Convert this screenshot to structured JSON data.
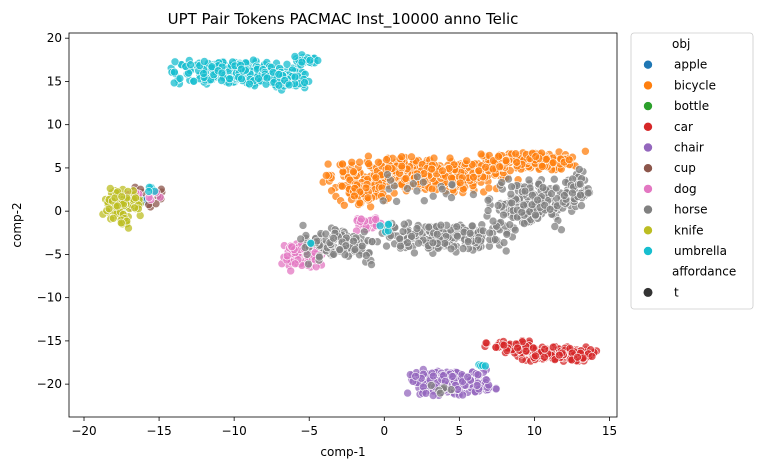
{
  "chart_data": {
    "type": "scatter",
    "title": "UPT Pair Tokens PACMAC Inst_10000 anno Telic",
    "xlabel": "comp-1",
    "ylabel": "comp-2",
    "xlim": [
      -21,
      15.5
    ],
    "ylim": [
      -23.8,
      20.6
    ],
    "xticks": [
      -20,
      -15,
      -10,
      -5,
      0,
      5,
      10,
      15
    ],
    "yticks": [
      20,
      15,
      10,
      5,
      0,
      -5,
      -10,
      -15,
      -20
    ],
    "grid": false,
    "legend_placement": "outside-right",
    "legend": {
      "hue_title": "obj",
      "style_title": "affordance",
      "style_items": [
        "t"
      ]
    },
    "series": [
      {
        "name": "apple",
        "color": "#1f77b4",
        "clusters": [
          {
            "cx": -16.5,
            "cy": 1.2,
            "rx": 1.0,
            "ry": 0.8,
            "n": 12
          }
        ]
      },
      {
        "name": "bicycle",
        "color": "#ff7f0e",
        "clusters": [
          {
            "cx": 2.5,
            "cy": 4.2,
            "rx": 5.5,
            "ry": 1.8,
            "n": 420
          },
          {
            "cx": 9.5,
            "cy": 5.8,
            "rx": 3.5,
            "ry": 1.0,
            "n": 160
          },
          {
            "cx": -1.5,
            "cy": 2.0,
            "rx": 1.5,
            "ry": 1.5,
            "n": 60
          }
        ]
      },
      {
        "name": "bottle",
        "color": "#2ca02c",
        "clusters": [
          {
            "cx": -16.8,
            "cy": 1.0,
            "rx": 0.8,
            "ry": 0.8,
            "n": 6
          }
        ]
      },
      {
        "name": "car",
        "color": "#d62728",
        "clusters": [
          {
            "cx": 11.5,
            "cy": -16.5,
            "rx": 2.2,
            "ry": 0.8,
            "n": 170
          },
          {
            "cx": 8.5,
            "cy": -15.8,
            "rx": 1.5,
            "ry": 0.7,
            "n": 60
          }
        ]
      },
      {
        "name": "chair",
        "color": "#9467bd",
        "clusters": [
          {
            "cx": 4.5,
            "cy": -19.8,
            "rx": 2.5,
            "ry": 1.3,
            "n": 220
          }
        ]
      },
      {
        "name": "cup",
        "color": "#8c564b",
        "clusters": [
          {
            "cx": -16.0,
            "cy": 1.5,
            "rx": 1.8,
            "ry": 1.2,
            "n": 14
          }
        ]
      },
      {
        "name": "dog",
        "color": "#e377c2",
        "clusters": [
          {
            "cx": -5.5,
            "cy": -5.0,
            "rx": 1.2,
            "ry": 1.6,
            "n": 90
          },
          {
            "cx": -1.2,
            "cy": -1.5,
            "rx": 1.0,
            "ry": 1.0,
            "n": 25
          },
          {
            "cx": -16.3,
            "cy": 2.0,
            "rx": 1.5,
            "ry": 1.0,
            "n": 12
          }
        ]
      },
      {
        "name": "horse",
        "color": "#808080",
        "clusters": [
          {
            "cx": 4.0,
            "cy": -3.0,
            "rx": 4.0,
            "ry": 1.6,
            "n": 200
          },
          {
            "cx": 9.5,
            "cy": 0.8,
            "rx": 2.5,
            "ry": 2.5,
            "n": 180
          },
          {
            "cx": 12.8,
            "cy": 2.5,
            "rx": 0.8,
            "ry": 2.0,
            "n": 50
          },
          {
            "cx": -2.8,
            "cy": -3.8,
            "rx": 2.5,
            "ry": 2.0,
            "n": 110
          },
          {
            "cx": 3.0,
            "cy": 2.5,
            "rx": 3.0,
            "ry": 1.5,
            "n": 20
          },
          {
            "cx": 3.6,
            "cy": -20.5,
            "rx": 1.0,
            "ry": 0.6,
            "n": 6
          }
        ]
      },
      {
        "name": "knife",
        "color": "#bcbd22",
        "clusters": [
          {
            "cx": -17.5,
            "cy": 1.0,
            "rx": 1.3,
            "ry": 1.6,
            "n": 90
          },
          {
            "cx": -17.3,
            "cy": -1.5,
            "rx": 0.3,
            "ry": 0.8,
            "n": 8
          }
        ]
      },
      {
        "name": "umbrella",
        "color": "#17becf",
        "clusters": [
          {
            "cx": -9.8,
            "cy": 16.0,
            "rx": 3.8,
            "ry": 1.3,
            "n": 260
          },
          {
            "cx": -7.0,
            "cy": 15.2,
            "rx": 1.8,
            "ry": 1.0,
            "n": 60
          },
          {
            "cx": -5.2,
            "cy": 17.5,
            "rx": 0.8,
            "ry": 0.5,
            "n": 25
          },
          {
            "cx": -15.5,
            "cy": 2.5,
            "rx": 0.5,
            "ry": 0.5,
            "n": 4
          },
          {
            "cx": 0.0,
            "cy": -2.0,
            "rx": 0.7,
            "ry": 0.8,
            "n": 5
          },
          {
            "cx": -5.0,
            "cy": -3.8,
            "rx": 0.3,
            "ry": 0.3,
            "n": 2
          },
          {
            "cx": 6.5,
            "cy": -17.8,
            "rx": 0.5,
            "ry": 0.6,
            "n": 4
          }
        ]
      }
    ]
  }
}
